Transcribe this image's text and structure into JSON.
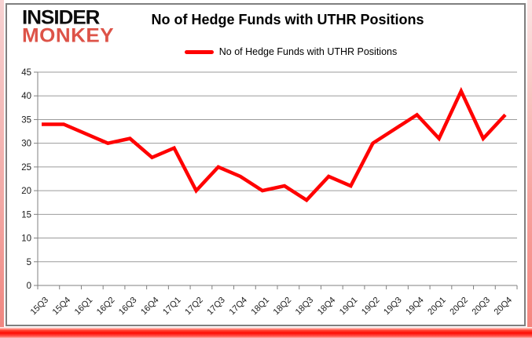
{
  "branding": {
    "logo_line1": "INSIDER",
    "logo_line2": "MONKEY",
    "logo_color_top": "#0d0d0d",
    "logo_color_bottom": "#dd5348"
  },
  "header": {
    "title": "No of Hedge Funds with UTHR Positions"
  },
  "legend": {
    "label": "No of Hedge Funds with UTHR Positions",
    "line_color": "#ff0000"
  },
  "chart_data": {
    "type": "line",
    "title": "No of Hedge Funds with UTHR Positions",
    "categories": [
      "15Q3",
      "15Q4",
      "16Q1",
      "16Q2",
      "16Q3",
      "16Q4",
      "17Q1",
      "17Q2",
      "17Q3",
      "17Q4",
      "18Q1",
      "18Q2",
      "18Q3",
      "18Q4",
      "19Q1",
      "19Q2",
      "19Q3",
      "19Q4",
      "20Q1",
      "20Q2",
      "20Q3",
      "20Q4"
    ],
    "series": [
      {
        "name": "No of Hedge Funds with UTHR Positions",
        "color": "#ff0000",
        "values": [
          34,
          34,
          32,
          30,
          31,
          27,
          29,
          20,
          25,
          23,
          20,
          21,
          18,
          23,
          21,
          30,
          33,
          36,
          31,
          41,
          31,
          36
        ]
      }
    ],
    "xlabel": "",
    "ylabel": "",
    "ylim": [
      0,
      45
    ],
    "yticks": [
      0,
      5,
      10,
      15,
      20,
      25,
      30,
      35,
      40,
      45
    ],
    "grid": "horizontal",
    "legend_position": "top",
    "gridline_color": "#9b9b9b",
    "axis_color": "#808080",
    "tick_label_color": "#1a1a1a"
  }
}
